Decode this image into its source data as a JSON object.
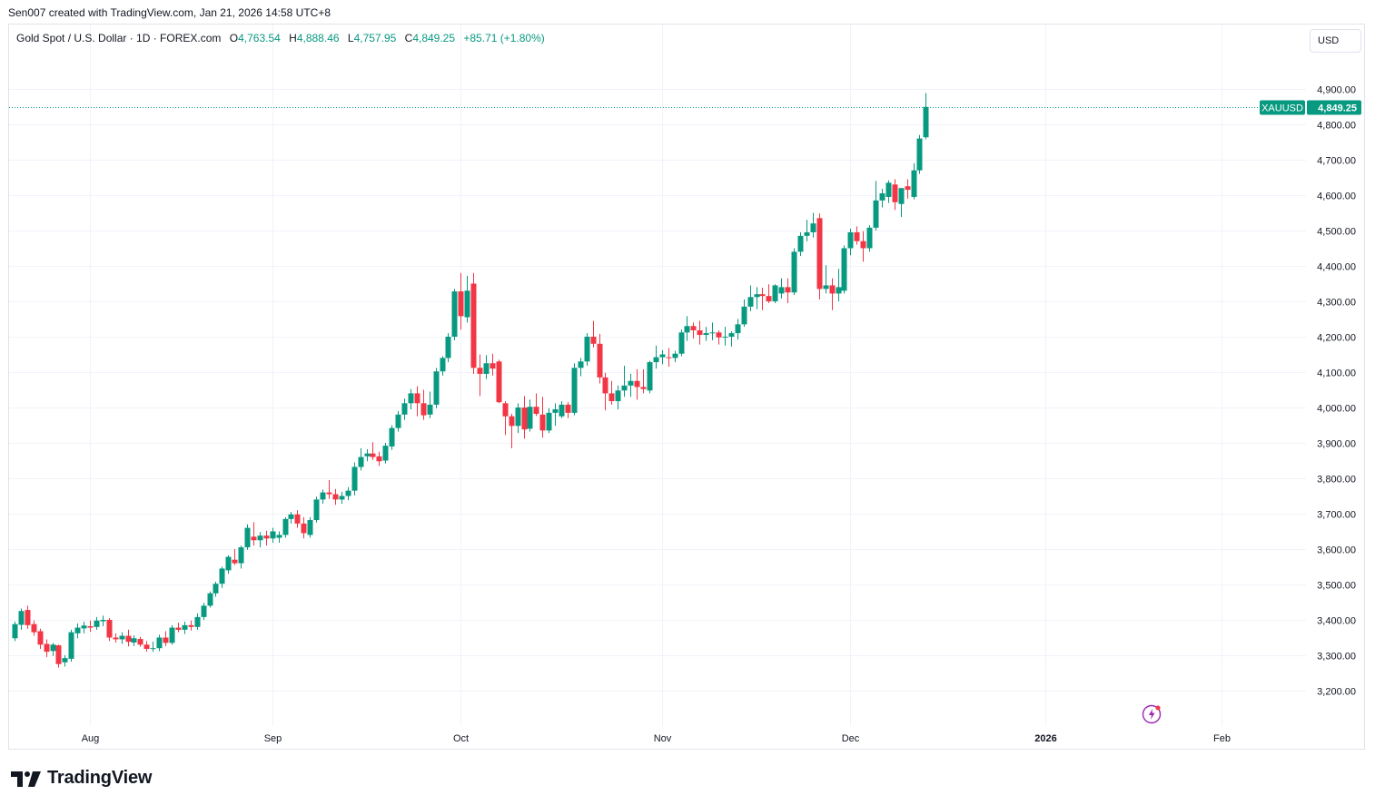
{
  "attribution": "Sen007 created with TradingView.com, Jan 21, 2026 14:58 UTC+8",
  "legend": {
    "symbol": "Gold Spot / U.S. Dollar · 1D · FOREX.com",
    "open_label": "O",
    "open": "4,763.54",
    "high_label": "H",
    "high": "4,888.46",
    "low_label": "L",
    "low": "4,757.95",
    "close_label": "C",
    "close": "4,849.25",
    "change": "+85.71 (+1.80%)"
  },
  "currency": "USD",
  "brand": "TradingView",
  "colors": {
    "up": "#089981",
    "down": "#f23645",
    "grid": "#f0f3fa",
    "text": "#131722"
  },
  "chart_data": {
    "type": "candlestick",
    "symbol": "XAUUSD",
    "title": "Gold Spot / U.S. Dollar · 1D · FOREX.com",
    "last_price": 4849.25,
    "last_price_label": "4,849.25",
    "ylim": [
      3140,
      5000
    ],
    "y_ticks": [
      3200,
      3300,
      3400,
      3500,
      3600,
      3700,
      3800,
      3900,
      4000,
      4100,
      4200,
      4300,
      4400,
      4500,
      4600,
      4700,
      4800,
      4900
    ],
    "y_tick_labels": [
      "3,200.00",
      "3,300.00",
      "3,400.00",
      "3,500.00",
      "3,600.00",
      "3,700.00",
      "3,800.00",
      "3,900.00",
      "4,000.00",
      "4,100.00",
      "4,200.00",
      "4,300.00",
      "4,400.00",
      "4,500.00",
      "4,600.00",
      "4,700.00",
      "4,800.00",
      "4,900.00"
    ],
    "x_ticks": [
      {
        "label": "Aug",
        "index": 12,
        "bold": false
      },
      {
        "label": "Sep",
        "index": 41,
        "bold": false
      },
      {
        "label": "Oct",
        "index": 71,
        "bold": false
      },
      {
        "label": "Nov",
        "index": 103,
        "bold": false
      },
      {
        "label": "Dec",
        "index": 133,
        "bold": false
      },
      {
        "label": "2026",
        "index": 164,
        "bold": true
      },
      {
        "label": "Feb",
        "index": 192,
        "bold": false
      }
    ],
    "candles": [
      [
        3348,
        3395,
        3340,
        3388
      ],
      [
        3386,
        3432,
        3372,
        3425
      ],
      [
        3428,
        3440,
        3375,
        3385
      ],
      [
        3388,
        3398,
        3355,
        3365
      ],
      [
        3368,
        3375,
        3318,
        3330
      ],
      [
        3332,
        3345,
        3295,
        3310
      ],
      [
        3312,
        3335,
        3298,
        3330
      ],
      [
        3328,
        3330,
        3265,
        3275
      ],
      [
        3280,
        3300,
        3268,
        3292
      ],
      [
        3290,
        3372,
        3282,
        3365
      ],
      [
        3362,
        3390,
        3348,
        3378
      ],
      [
        3376,
        3395,
        3362,
        3384
      ],
      [
        3382,
        3398,
        3366,
        3378
      ],
      [
        3380,
        3408,
        3372,
        3398
      ],
      [
        3396,
        3412,
        3382,
        3400
      ],
      [
        3400,
        3405,
        3340,
        3350
      ],
      [
        3350,
        3362,
        3336,
        3345
      ],
      [
        3345,
        3365,
        3332,
        3355
      ],
      [
        3355,
        3372,
        3325,
        3338
      ],
      [
        3336,
        3356,
        3326,
        3348
      ],
      [
        3346,
        3352,
        3324,
        3330
      ],
      [
        3330,
        3340,
        3310,
        3318
      ],
      [
        3318,
        3338,
        3310,
        3320
      ],
      [
        3320,
        3358,
        3312,
        3350
      ],
      [
        3350,
        3368,
        3326,
        3335
      ],
      [
        3335,
        3385,
        3330,
        3378
      ],
      [
        3378,
        3392,
        3365,
        3372
      ],
      [
        3372,
        3395,
        3360,
        3385
      ],
      [
        3385,
        3398,
        3370,
        3380
      ],
      [
        3380,
        3418,
        3372,
        3408
      ],
      [
        3408,
        3448,
        3400,
        3440
      ],
      [
        3440,
        3480,
        3435,
        3475
      ],
      [
        3475,
        3508,
        3465,
        3502
      ],
      [
        3502,
        3550,
        3490,
        3545
      ],
      [
        3540,
        3582,
        3530,
        3578
      ],
      [
        3570,
        3600,
        3555,
        3560
      ],
      [
        3560,
        3610,
        3545,
        3605
      ],
      [
        3605,
        3670,
        3598,
        3660
      ],
      [
        3635,
        3676,
        3610,
        3625
      ],
      [
        3625,
        3648,
        3605,
        3638
      ],
      [
        3638,
        3652,
        3610,
        3630
      ],
      [
        3630,
        3660,
        3618,
        3650
      ],
      [
        3632,
        3650,
        3618,
        3640
      ],
      [
        3640,
        3690,
        3632,
        3685
      ],
      [
        3685,
        3705,
        3672,
        3698
      ],
      [
        3698,
        3710,
        3660,
        3672
      ],
      [
        3672,
        3690,
        3630,
        3645
      ],
      [
        3640,
        3690,
        3632,
        3682
      ],
      [
        3682,
        3748,
        3675,
        3740
      ],
      [
        3740,
        3768,
        3728,
        3760
      ],
      [
        3760,
        3795,
        3742,
        3755
      ],
      [
        3755,
        3770,
        3725,
        3740
      ],
      [
        3740,
        3762,
        3728,
        3750
      ],
      [
        3750,
        3775,
        3738,
        3765
      ],
      [
        3765,
        3845,
        3752,
        3832
      ],
      [
        3832,
        3885,
        3822,
        3860
      ],
      [
        3862,
        3882,
        3848,
        3870
      ],
      [
        3870,
        3902,
        3852,
        3860
      ],
      [
        3862,
        3875,
        3835,
        3848
      ],
      [
        3850,
        3900,
        3842,
        3892
      ],
      [
        3890,
        3950,
        3880,
        3942
      ],
      [
        3942,
        3990,
        3932,
        3980
      ],
      [
        3980,
        4025,
        3965,
        4012
      ],
      [
        4012,
        4052,
        3995,
        4040
      ],
      [
        4040,
        4060,
        3975,
        4012
      ],
      [
        4012,
        4050,
        3965,
        3978
      ],
      [
        3980,
        4045,
        3970,
        4008
      ],
      [
        4008,
        4112,
        3998,
        4102
      ],
      [
        4102,
        4145,
        4090,
        4140
      ],
      [
        4140,
        4210,
        4128,
        4200
      ],
      [
        4200,
        4335,
        4190,
        4328
      ],
      [
        4328,
        4380,
        4220,
        4258
      ],
      [
        4255,
        4372,
        4240,
        4330
      ],
      [
        4350,
        4380,
        4095,
        4112
      ],
      [
        4112,
        4150,
        4032,
        4095
      ],
      [
        4095,
        4148,
        4080,
        4125
      ],
      [
        4125,
        4152,
        4090,
        4110
      ],
      [
        4130,
        4135,
        4012,
        4015
      ],
      [
        4012,
        4018,
        3922,
        3975
      ],
      [
        3975,
        3982,
        3885,
        3948
      ],
      [
        3948,
        4012,
        3928,
        4000
      ],
      [
        4000,
        4032,
        3912,
        3938
      ],
      [
        3940,
        4022,
        3932,
        4002
      ],
      [
        4002,
        4040,
        3976,
        3982
      ],
      [
        3980,
        4030,
        3915,
        3935
      ],
      [
        3935,
        3998,
        3928,
        3985
      ],
      [
        3985,
        4012,
        3948,
        3995
      ],
      [
        3975,
        4018,
        3970,
        4008
      ],
      [
        4008,
        4015,
        3970,
        3985
      ],
      [
        3985,
        4125,
        3978,
        4112
      ],
      [
        4112,
        4140,
        4088,
        4130
      ],
      [
        4130,
        4210,
        4118,
        4200
      ],
      [
        4200,
        4245,
        4170,
        4180
      ],
      [
        4180,
        4208,
        4068,
        4085
      ],
      [
        4085,
        4098,
        3992,
        4040
      ],
      [
        4040,
        4075,
        4008,
        4018
      ],
      [
        4018,
        4062,
        3995,
        4048
      ],
      [
        4048,
        4118,
        4030,
        4062
      ],
      [
        4062,
        4095,
        4030,
        4075
      ],
      [
        4075,
        4108,
        4022,
        4058
      ],
      [
        4058,
        4108,
        4040,
        4052
      ],
      [
        4048,
        4132,
        4040,
        4128
      ],
      [
        4128,
        4175,
        4110,
        4142
      ],
      [
        4142,
        4162,
        4122,
        4150
      ],
      [
        4142,
        4168,
        4115,
        4140
      ],
      [
        4140,
        4160,
        4128,
        4152
      ],
      [
        4152,
        4220,
        4145,
        4212
      ],
      [
        4212,
        4258,
        4188,
        4230
      ],
      [
        4230,
        4240,
        4195,
        4218
      ],
      [
        4218,
        4245,
        4178,
        4205
      ],
      [
        4205,
        4228,
        4188,
        4210
      ],
      [
        4210,
        4240,
        4190,
        4212
      ],
      [
        4212,
        4218,
        4178,
        4198
      ],
      [
        4198,
        4228,
        4175,
        4200
      ],
      [
        4200,
        4215,
        4172,
        4210
      ],
      [
        4210,
        4250,
        4192,
        4235
      ],
      [
        4235,
        4305,
        4228,
        4285
      ],
      [
        4285,
        4345,
        4272,
        4312
      ],
      [
        4312,
        4340,
        4278,
        4320
      ],
      [
        4320,
        4338,
        4275,
        4315
      ],
      [
        4315,
        4348,
        4295,
        4300
      ],
      [
        4300,
        4348,
        4295,
        4345
      ],
      [
        4322,
        4365,
        4308,
        4340
      ],
      [
        4340,
        4365,
        4295,
        4325
      ],
      [
        4325,
        4450,
        4318,
        4440
      ],
      [
        4440,
        4495,
        4428,
        4485
      ],
      [
        4485,
        4530,
        4470,
        4495
      ],
      [
        4495,
        4550,
        4480,
        4520
      ],
      [
        4535,
        4548,
        4305,
        4335
      ],
      [
        4335,
        4402,
        4322,
        4345
      ],
      [
        4345,
        4365,
        4275,
        4322
      ],
      [
        4322,
        4392,
        4300,
        4340
      ],
      [
        4330,
        4458,
        4322,
        4450
      ],
      [
        4450,
        4505,
        4430,
        4495
      ],
      [
        4495,
        4512,
        4460,
        4470
      ],
      [
        4470,
        4498,
        4412,
        4450
      ],
      [
        4450,
        4515,
        4440,
        4508
      ],
      [
        4508,
        4640,
        4500,
        4585
      ],
      [
        4585,
        4618,
        4565,
        4605
      ],
      [
        4595,
        4642,
        4578,
        4635
      ],
      [
        4630,
        4645,
        4558,
        4580
      ],
      [
        4575,
        4618,
        4538,
        4620
      ],
      [
        4625,
        4645,
        4590,
        4615
      ],
      [
        4595,
        4690,
        4588,
        4670
      ],
      [
        4670,
        4770,
        4660,
        4760
      ],
      [
        4763.54,
        4888.46,
        4757.95,
        4849.25
      ]
    ]
  }
}
